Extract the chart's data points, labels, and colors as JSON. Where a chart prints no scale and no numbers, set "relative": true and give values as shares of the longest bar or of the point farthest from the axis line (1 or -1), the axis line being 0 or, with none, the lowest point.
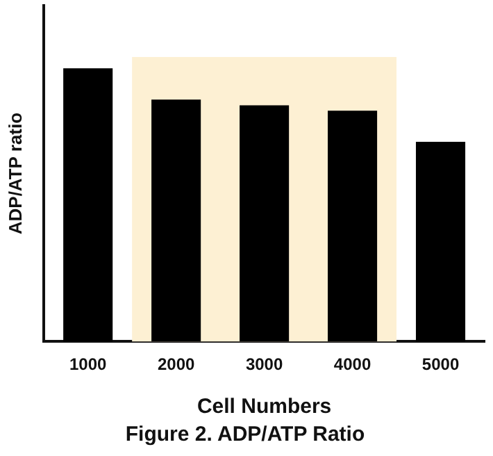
{
  "chart_data": {
    "type": "bar",
    "title": "Figure 2. ADP/ATP Ratio",
    "xlabel": "Cell Numbers",
    "ylabel": "ADP/ATP ratio",
    "categories": [
      "1000",
      "2000",
      "3000",
      "4000",
      "5000"
    ],
    "values": [
      1,
      0.886,
      0.865,
      0.845,
      0.731
    ],
    "color": "#000000",
    "relative": true,
    "grid": false,
    "legend": false,
    "bands": [
      {
        "axis": "x",
        "from": "2000",
        "to": "4000",
        "color": "#fdf0d3"
      }
    ]
  }
}
